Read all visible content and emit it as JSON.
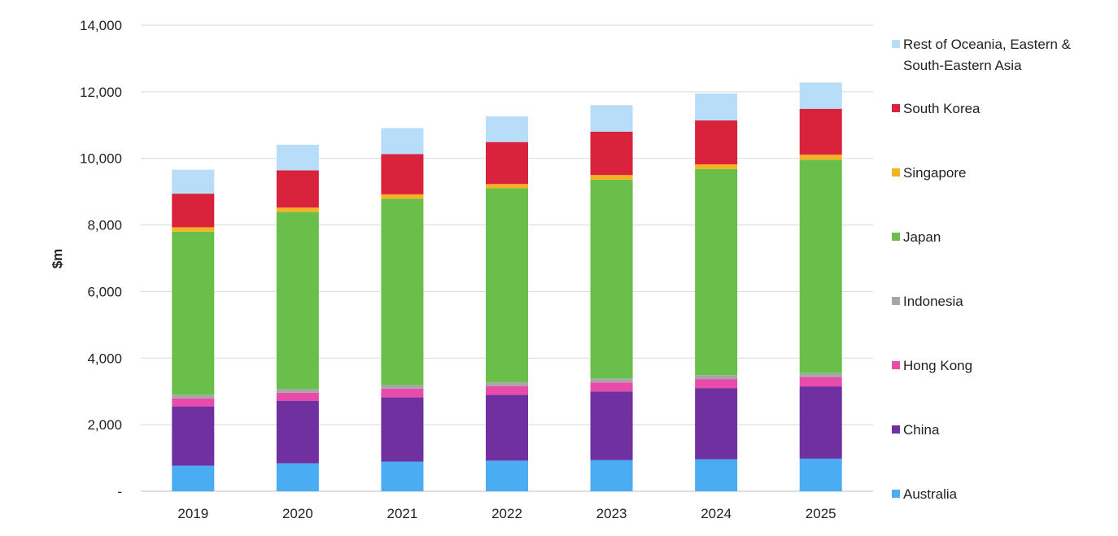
{
  "chart_data": {
    "type": "bar",
    "stacked": true,
    "categories": [
      "2019",
      "2020",
      "2021",
      "2022",
      "2023",
      "2024",
      "2025"
    ],
    "ylabel": "$m",
    "ylim": [
      0,
      14000
    ],
    "yticks": [
      0,
      2000,
      4000,
      6000,
      8000,
      10000,
      12000,
      14000
    ],
    "ytick_labels": [
      "-",
      "2,000",
      "4,000",
      "6,000",
      "8,000",
      "10,000",
      "12,000",
      "14,000"
    ],
    "grid": true,
    "legend_position": "right",
    "series": [
      {
        "name": "Australia",
        "color": "#4AACF2",
        "values": [
          770,
          840,
          890,
          920,
          940,
          960,
          980
        ]
      },
      {
        "name": "China",
        "color": "#7030A0",
        "values": [
          1780,
          1880,
          1930,
          1980,
          2060,
          2140,
          2170
        ]
      },
      {
        "name": "Hong Kong",
        "color": "#E84BAA",
        "values": [
          240,
          240,
          260,
          260,
          270,
          270,
          280
        ]
      },
      {
        "name": "Indonesia",
        "color": "#A6A6A6",
        "values": [
          110,
          110,
          110,
          110,
          120,
          120,
          120
        ]
      },
      {
        "name": "Japan",
        "color": "#6ABF4B",
        "values": [
          4900,
          5320,
          5600,
          5830,
          5970,
          6190,
          6410
        ]
      },
      {
        "name": "Singapore",
        "color": "#F5B324",
        "values": [
          130,
          130,
          130,
          130,
          140,
          140,
          150
        ]
      },
      {
        "name": "South Korea",
        "color": "#D9223C",
        "values": [
          1010,
          1120,
          1210,
          1260,
          1300,
          1320,
          1380
        ]
      },
      {
        "name": "Rest of Oceania, Eastern & South-Eastern Asia",
        "color": "#B8DDF8",
        "values": [
          720,
          770,
          780,
          770,
          800,
          810,
          790
        ]
      }
    ]
  }
}
